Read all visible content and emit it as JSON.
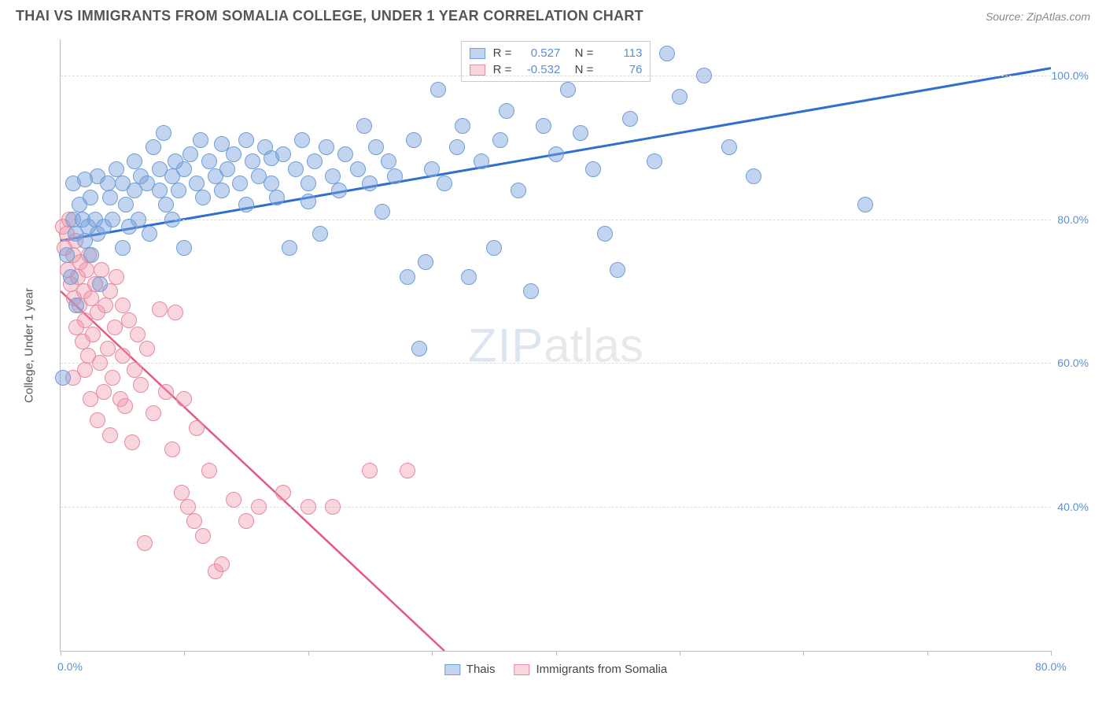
{
  "header": {
    "title": "THAI VS IMMIGRANTS FROM SOMALIA COLLEGE, UNDER 1 YEAR CORRELATION CHART",
    "source": "Source: ZipAtlas.com"
  },
  "watermark": {
    "part1": "ZIP",
    "part2": "atlas"
  },
  "axes": {
    "y_title": "College, Under 1 year",
    "x_min": 0,
    "x_max": 80,
    "y_min": 20,
    "y_max": 105,
    "x_ticks": [
      0,
      10,
      20,
      30,
      40,
      50,
      60,
      70,
      80
    ],
    "x_tick_labels_shown": {
      "0": "0.0%",
      "80": "80.0%"
    },
    "y_gridlines": [
      40,
      60,
      80,
      100
    ],
    "y_tick_labels": {
      "40": "40.0%",
      "60": "60.0%",
      "80": "80.0%",
      "100": "100.0%"
    },
    "grid_color": "#dddddd",
    "axis_color": "#bbbbbb",
    "tick_label_color": "#5b8fd6",
    "tick_fontsize": 14,
    "y_title_fontsize": 15
  },
  "series": {
    "thais": {
      "label": "Thais",
      "color_fill": "rgba(120,160,220,0.45)",
      "color_stroke": "#6f9fd8",
      "line_color": "#2f6fd0",
      "line_width": 3,
      "marker_radius": 10,
      "R": "0.527",
      "N": "113",
      "trend": {
        "x1": 0,
        "y1": 77,
        "x2": 80,
        "y2": 101
      },
      "points": [
        [
          0.2,
          58
        ],
        [
          0.5,
          75
        ],
        [
          0.8,
          72
        ],
        [
          1,
          80
        ],
        [
          1,
          85
        ],
        [
          1.2,
          78
        ],
        [
          1.3,
          68
        ],
        [
          1.5,
          82
        ],
        [
          1.8,
          80
        ],
        [
          2,
          77
        ],
        [
          2,
          85.5
        ],
        [
          2.2,
          79
        ],
        [
          2.4,
          83
        ],
        [
          2.5,
          75
        ],
        [
          2.8,
          80
        ],
        [
          3,
          78
        ],
        [
          3,
          86
        ],
        [
          3.2,
          71
        ],
        [
          3.5,
          79
        ],
        [
          3.8,
          85
        ],
        [
          4,
          83
        ],
        [
          4.2,
          80
        ],
        [
          4.5,
          87
        ],
        [
          5,
          85
        ],
        [
          5,
          76
        ],
        [
          5.3,
          82
        ],
        [
          5.5,
          79
        ],
        [
          6,
          84
        ],
        [
          6,
          88
        ],
        [
          6.3,
          80
        ],
        [
          6.5,
          86
        ],
        [
          7,
          85
        ],
        [
          7.2,
          78
        ],
        [
          7.5,
          90
        ],
        [
          8,
          84
        ],
        [
          8,
          87
        ],
        [
          8.3,
          92
        ],
        [
          8.5,
          82
        ],
        [
          9,
          86
        ],
        [
          9,
          80
        ],
        [
          9.3,
          88
        ],
        [
          9.5,
          84
        ],
        [
          10,
          87
        ],
        [
          10,
          76
        ],
        [
          10.5,
          89
        ],
        [
          11,
          85
        ],
        [
          11.3,
          91
        ],
        [
          11.5,
          83
        ],
        [
          12,
          88
        ],
        [
          12.5,
          86
        ],
        [
          13,
          90.5
        ],
        [
          13,
          84
        ],
        [
          13.5,
          87
        ],
        [
          14,
          89
        ],
        [
          14.5,
          85
        ],
        [
          15,
          91
        ],
        [
          15,
          82
        ],
        [
          15.5,
          88
        ],
        [
          16,
          86
        ],
        [
          16.5,
          90
        ],
        [
          17,
          85
        ],
        [
          17,
          88.5
        ],
        [
          17.5,
          83
        ],
        [
          18,
          89
        ],
        [
          18.5,
          76
        ],
        [
          19,
          87
        ],
        [
          19.5,
          91
        ],
        [
          20,
          85
        ],
        [
          20,
          82.5
        ],
        [
          20.5,
          88
        ],
        [
          21,
          78
        ],
        [
          21.5,
          90
        ],
        [
          22,
          86
        ],
        [
          22.5,
          84
        ],
        [
          23,
          89
        ],
        [
          24,
          87
        ],
        [
          24.5,
          93
        ],
        [
          25,
          85
        ],
        [
          25.5,
          90
        ],
        [
          26,
          81
        ],
        [
          26.5,
          88
        ],
        [
          27,
          86
        ],
        [
          28,
          72
        ],
        [
          28.5,
          91
        ],
        [
          29,
          62
        ],
        [
          29.5,
          74
        ],
        [
          30,
          87
        ],
        [
          30.5,
          98
        ],
        [
          31,
          85
        ],
        [
          32,
          90
        ],
        [
          32.5,
          93
        ],
        [
          33,
          72
        ],
        [
          34,
          88
        ],
        [
          35,
          76
        ],
        [
          35.5,
          91
        ],
        [
          36,
          95
        ],
        [
          37,
          84
        ],
        [
          38,
          70
        ],
        [
          39,
          93
        ],
        [
          40,
          89
        ],
        [
          41,
          98
        ],
        [
          42,
          92
        ],
        [
          43,
          87
        ],
        [
          44,
          78
        ],
        [
          46,
          94
        ],
        [
          48,
          88
        ],
        [
          49,
          103
        ],
        [
          50,
          97
        ],
        [
          52,
          100
        ],
        [
          54,
          90
        ],
        [
          56,
          86
        ],
        [
          65,
          82
        ],
        [
          45,
          73
        ]
      ]
    },
    "somalia": {
      "label": "Immigrants from Somalia",
      "color_fill": "rgba(240,150,170,0.40)",
      "color_stroke": "#e88aa0",
      "line_color": "#e35a84",
      "line_width": 2.5,
      "marker_radius": 10,
      "R": "-0.532",
      "N": "76",
      "trend": {
        "x1": 0,
        "y1": 70,
        "x2": 31,
        "y2": 20
      },
      "points": [
        [
          0.2,
          79
        ],
        [
          0.3,
          76
        ],
        [
          0.5,
          78
        ],
        [
          0.6,
          73
        ],
        [
          0.7,
          80
        ],
        [
          0.8,
          71
        ],
        [
          1,
          75
        ],
        [
          1,
          58
        ],
        [
          1.1,
          69
        ],
        [
          1.2,
          77
        ],
        [
          1.3,
          65
        ],
        [
          1.4,
          72
        ],
        [
          1.5,
          68
        ],
        [
          1.6,
          74
        ],
        [
          1.8,
          63
        ],
        [
          1.9,
          70
        ],
        [
          2,
          66
        ],
        [
          2,
          59
        ],
        [
          2.1,
          73
        ],
        [
          2.2,
          61
        ],
        [
          2.3,
          75
        ],
        [
          2.4,
          55
        ],
        [
          2.5,
          69
        ],
        [
          2.6,
          64
        ],
        [
          2.8,
          71
        ],
        [
          3,
          67
        ],
        [
          3,
          52
        ],
        [
          3.2,
          60
        ],
        [
          3.3,
          73
        ],
        [
          3.5,
          56
        ],
        [
          3.6,
          68
        ],
        [
          3.8,
          62
        ],
        [
          4,
          70
        ],
        [
          4,
          50
        ],
        [
          4.2,
          58
        ],
        [
          4.4,
          65
        ],
        [
          4.5,
          72
        ],
        [
          4.8,
          55
        ],
        [
          5,
          61
        ],
        [
          5,
          68
        ],
        [
          5.2,
          54
        ],
        [
          5.5,
          66
        ],
        [
          5.8,
          49
        ],
        [
          6,
          59
        ],
        [
          6.2,
          64
        ],
        [
          6.5,
          57
        ],
        [
          6.8,
          35
        ],
        [
          7,
          62
        ],
        [
          7.5,
          53
        ],
        [
          8,
          67.5
        ],
        [
          8.5,
          56
        ],
        [
          9,
          48
        ],
        [
          9.3,
          67
        ],
        [
          9.8,
          42
        ],
        [
          10,
          55
        ],
        [
          10.3,
          40
        ],
        [
          10.8,
          38
        ],
        [
          11,
          51
        ],
        [
          11.5,
          36
        ],
        [
          12,
          45
        ],
        [
          12.5,
          31
        ],
        [
          13,
          32
        ],
        [
          14,
          41
        ],
        [
          15,
          38
        ],
        [
          16,
          40
        ],
        [
          18,
          42
        ],
        [
          20,
          40
        ],
        [
          22,
          40
        ],
        [
          25,
          45
        ],
        [
          28,
          45
        ]
      ]
    }
  },
  "legend_top": {
    "border_color": "#cccccc",
    "bg": "#ffffff",
    "fontsize": 15,
    "r_label": "R =",
    "n_label": "N ="
  },
  "legend_bottom": {
    "fontsize": 15
  }
}
